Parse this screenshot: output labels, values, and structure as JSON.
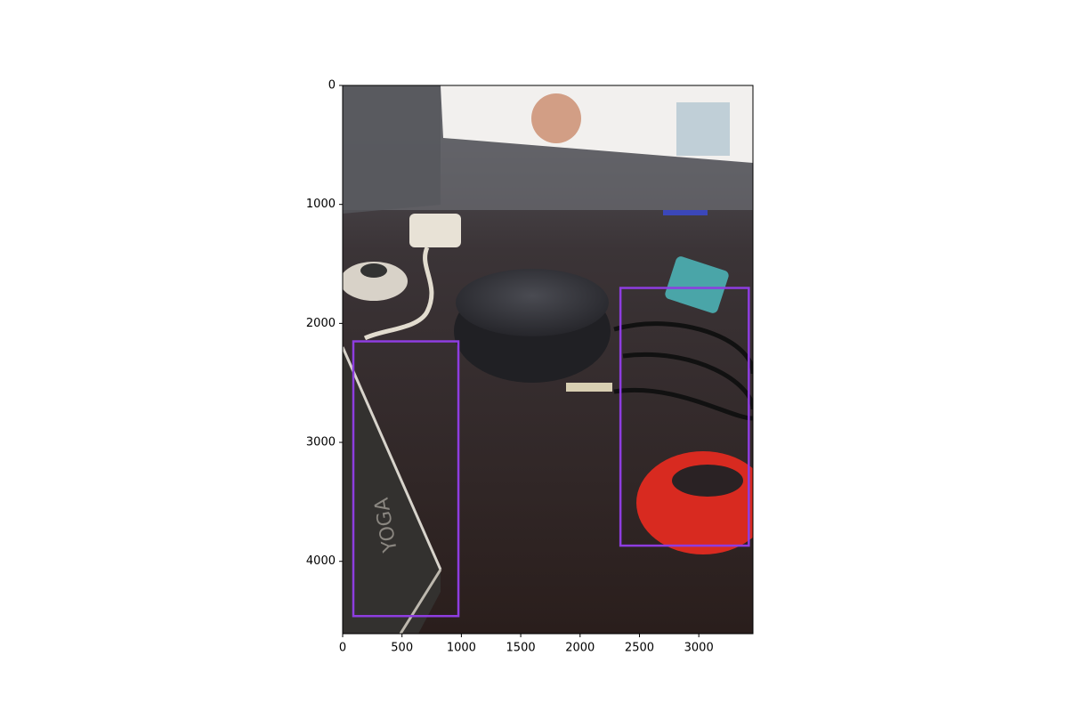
{
  "chart_data": {
    "type": "image",
    "xlim": [
      0,
      3456
    ],
    "ylim": [
      4608,
      0
    ],
    "xticks": [
      0,
      500,
      1000,
      1500,
      2000,
      2500,
      3000
    ],
    "yticks": [
      0,
      1000,
      2000,
      3000,
      4000
    ],
    "box_color": "#8e3de0",
    "boxes": [
      {
        "x": [
          90,
          975
        ],
        "y": [
          2151,
          4460
        ]
      },
      {
        "x": [
          2340,
          3421
        ],
        "y": [
          1702,
          3868
        ]
      }
    ]
  }
}
